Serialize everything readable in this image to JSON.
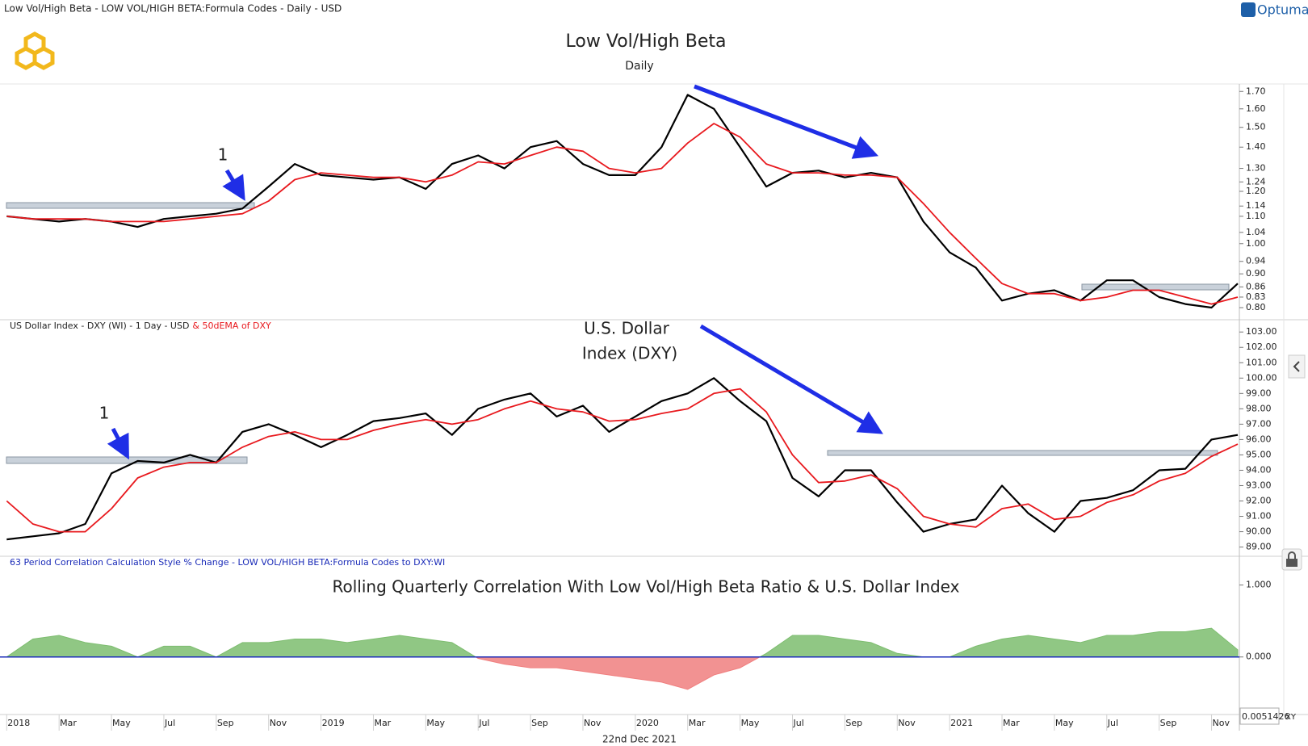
{
  "header": {
    "title": "Low Vol/High Beta - LOW VOL/HIGH BETA:Formula Codes - Daily - USD",
    "brand": "Optuma",
    "date": "22nd Dec 2021",
    "cursor_value": "0.0051426",
    "axis_mode": "XY"
  },
  "chart_data": [
    {
      "type": "line",
      "title": "Low Vol/High Beta",
      "subtitle": "Daily",
      "log_scale": true,
      "grid": false,
      "ylim": [
        0.767,
        1.74
      ],
      "yticks": [
        {
          "value": 0.8,
          "label": "0.80"
        },
        {
          "value": 0.83,
          "label": "0.83"
        },
        {
          "value": 0.86,
          "label": "0.86"
        },
        {
          "value": 0.9,
          "label": "0.90"
        },
        {
          "value": 0.94,
          "label": "0.94"
        },
        {
          "value": 1,
          "label": "1.00"
        },
        {
          "value": 1.04,
          "label": "1.04"
        },
        {
          "value": 1.1,
          "label": "1.10"
        },
        {
          "value": 1.14,
          "label": "1.14"
        },
        {
          "value": 1.2,
          "label": "1.20"
        },
        {
          "value": 1.24,
          "label": "1.24"
        },
        {
          "value": 1.3,
          "label": "1.30"
        },
        {
          "value": 1.4,
          "label": "1.40"
        },
        {
          "value": 1.5,
          "label": "1.50"
        },
        {
          "value": 1.6,
          "label": "1.60"
        },
        {
          "value": 1.7,
          "label": "1.70"
        }
      ],
      "annotations": [
        "1"
      ],
      "series": [
        {
          "color": "#000000",
          "values": [
            1.1,
            1.09,
            1.08,
            1.09,
            1.08,
            1.06,
            1.09,
            1.1,
            1.11,
            1.13,
            1.22,
            1.32,
            1.27,
            1.26,
            1.25,
            1.26,
            1.21,
            1.32,
            1.36,
            1.3,
            1.4,
            1.43,
            1.32,
            1.27,
            1.27,
            1.4,
            1.68,
            1.6,
            1.4,
            1.22,
            1.28,
            1.29,
            1.26,
            1.28,
            1.26,
            1.08,
            0.97,
            0.92,
            0.82,
            0.84,
            0.85,
            0.82,
            0.88,
            0.88,
            0.83,
            0.81,
            0.8,
            0.87
          ]
        },
        {
          "color": "#e8191e",
          "values": [
            1.1,
            1.09,
            1.09,
            1.09,
            1.08,
            1.08,
            1.08,
            1.09,
            1.1,
            1.11,
            1.16,
            1.25,
            1.28,
            1.27,
            1.26,
            1.26,
            1.24,
            1.27,
            1.33,
            1.32,
            1.36,
            1.4,
            1.38,
            1.3,
            1.28,
            1.3,
            1.42,
            1.52,
            1.45,
            1.32,
            1.28,
            1.28,
            1.27,
            1.27,
            1.26,
            1.15,
            1.04,
            0.95,
            0.87,
            0.84,
            0.84,
            0.82,
            0.83,
            0.85,
            0.85,
            0.83,
            0.81,
            0.83
          ]
        }
      ]
    },
    {
      "type": "line",
      "log_scale": false,
      "grid": false,
      "ylim": [
        88.4,
        103.8
      ],
      "yticks": [
        {
          "value": 89,
          "label": "89.00"
        },
        {
          "value": 90,
          "label": "90.00"
        },
        {
          "value": 91,
          "label": "91.00"
        },
        {
          "value": 92,
          "label": "92.00"
        },
        {
          "value": 93,
          "label": "93.00"
        },
        {
          "value": 94,
          "label": "94.00"
        },
        {
          "value": 95,
          "label": "95.00"
        },
        {
          "value": 96,
          "label": "96.00"
        },
        {
          "value": 97,
          "label": "97.00"
        },
        {
          "value": 98,
          "label": "98.00"
        },
        {
          "value": 99,
          "label": "99.00"
        },
        {
          "value": 100,
          "label": "100.00"
        },
        {
          "value": 101,
          "label": "101.00"
        },
        {
          "value": 102,
          "label": "102.00"
        },
        {
          "value": 103,
          "label": "103.00"
        }
      ],
      "annotations": [
        "1",
        "U.S. Dollar",
        "Index (DXY)"
      ],
      "series": [
        {
          "name": "US Dollar Index - DXY (WI) - 1 Day - USD",
          "color": "#000000",
          "values": [
            89.5,
            89.7,
            89.9,
            90.5,
            93.8,
            94.6,
            94.5,
            95.0,
            94.5,
            96.5,
            97.0,
            96.3,
            95.5,
            96.3,
            97.2,
            97.4,
            97.7,
            96.3,
            98.0,
            98.6,
            99.0,
            97.5,
            98.2,
            96.5,
            97.5,
            98.5,
            99.0,
            100.0,
            98.5,
            97.2,
            93.5,
            92.3,
            94.0,
            94.0,
            91.9,
            90.0,
            90.5,
            90.8,
            93.0,
            91.2,
            90.0,
            92.0,
            92.2,
            92.7,
            94.0,
            94.1,
            96.0,
            96.3
          ]
        },
        {
          "name": "& 50dEMA of DXY",
          "color": "#e8191e",
          "values": [
            92.0,
            90.5,
            90.0,
            90.0,
            91.5,
            93.5,
            94.2,
            94.5,
            94.5,
            95.5,
            96.2,
            96.5,
            96.0,
            96.0,
            96.6,
            97.0,
            97.3,
            97.0,
            97.3,
            98.0,
            98.5,
            98.0,
            97.8,
            97.2,
            97.3,
            97.7,
            98.0,
            99.0,
            99.3,
            97.8,
            95.0,
            93.2,
            93.3,
            93.7,
            92.8,
            91.0,
            90.5,
            90.3,
            91.5,
            91.8,
            90.8,
            91.0,
            91.9,
            92.4,
            93.3,
            93.8,
            94.9,
            95.7
          ]
        }
      ]
    },
    {
      "type": "area",
      "description": "63 Period Correlation Calculation Style % Change - LOW VOL/HIGH BETA:Formula Codes to DXY:WI",
      "title": "Rolling Quarterly Correlation With Low Vol/High Beta Ratio & U.S. Dollar Index",
      "grid": false,
      "ylim": [
        -0.8,
        1.4
      ],
      "yticks": [
        {
          "value": 0,
          "label": "0.000"
        },
        {
          "value": 1,
          "label": "1.000"
        }
      ],
      "categories": [
        "2018",
        null,
        "Mar",
        null,
        "May",
        null,
        "Jul",
        null,
        "Sep",
        null,
        "Nov",
        null,
        "2019",
        null,
        "Mar",
        null,
        "May",
        null,
        "Jul",
        null,
        "Sep",
        null,
        "Nov",
        null,
        "2020",
        null,
        "Mar",
        null,
        "May",
        null,
        "Jul",
        null,
        "Sep",
        null,
        "Nov",
        null,
        "2021",
        null,
        "Mar",
        null,
        "May",
        null,
        "Jul",
        null,
        "Sep",
        null,
        "Nov",
        null
      ],
      "series": [
        {
          "color": "#7dbd6f",
          "negative_color": "#f07f7f",
          "values": [
            0.0,
            0.25,
            0.3,
            0.2,
            0.15,
            0.0,
            0.15,
            0.15,
            0.0,
            0.2,
            0.2,
            0.25,
            0.25,
            0.2,
            0.25,
            0.3,
            0.25,
            0.2,
            -0.02,
            -0.1,
            -0.15,
            -0.15,
            -0.2,
            -0.25,
            -0.3,
            -0.35,
            -0.45,
            -0.25,
            -0.15,
            0.05,
            0.3,
            0.3,
            0.25,
            0.2,
            0.05,
            0.0,
            0.0,
            0.15,
            0.25,
            0.3,
            0.25,
            0.2,
            0.3,
            0.3,
            0.35,
            0.35,
            0.4,
            0.1
          ]
        }
      ]
    }
  ]
}
